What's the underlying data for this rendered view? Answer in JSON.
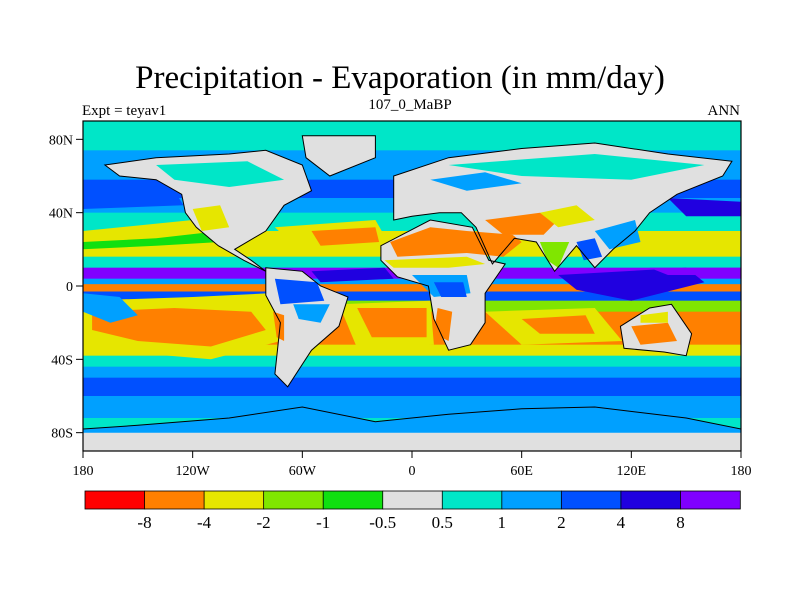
{
  "header": {
    "title": "Precipitation - Evaporation (in mm/day)",
    "subtitle": "107_0_MaBP",
    "left_label": "Expt = teyav1",
    "right_label": "ANN"
  },
  "chart_data": {
    "type": "heatmap",
    "title": "Precipitation - Evaporation (in mm/day)",
    "subtitle": "107_0_MaBP",
    "left_string": "Expt = teyav1",
    "right_string": "ANN",
    "x_range": [
      -180,
      180
    ],
    "y_range": [
      -90,
      90
    ],
    "x_ticks": [
      {
        "value": -180,
        "label": "180"
      },
      {
        "value": -120,
        "label": "120W"
      },
      {
        "value": -60,
        "label": "60W"
      },
      {
        "value": 0,
        "label": "0"
      },
      {
        "value": 60,
        "label": "60E"
      },
      {
        "value": 120,
        "label": "120E"
      },
      {
        "value": 180,
        "label": "180"
      }
    ],
    "y_ticks": [
      {
        "value": 80,
        "label": "80N"
      },
      {
        "value": 40,
        "label": "40N"
      },
      {
        "value": 0,
        "label": "0"
      },
      {
        "value": -40,
        "label": "40S"
      },
      {
        "value": -80,
        "label": "80S"
      }
    ],
    "levels": [
      -8,
      -4,
      -2,
      -1,
      -0.5,
      0.5,
      1,
      2,
      4,
      8
    ],
    "level_labels": [
      "-8",
      "-4",
      "-2",
      "-1",
      "-0.5",
      "0.5",
      "1",
      "2",
      "4",
      "8"
    ],
    "colors": [
      "#ff0000",
      "#ff8000",
      "#e6e600",
      "#80e600",
      "#10e010",
      "#e0e0e0",
      "#00e6c8",
      "#00a0ff",
      "#0050ff",
      "#2000e0",
      "#8000ff"
    ]
  }
}
